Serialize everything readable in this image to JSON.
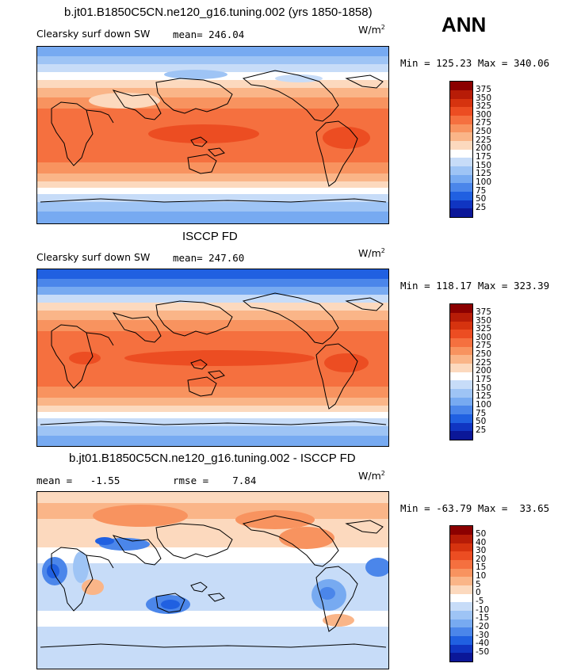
{
  "header": {
    "season": "ANN"
  },
  "chart_data": [
    {
      "type": "heatmap",
      "title": "b.jt01.B1850C5CN.ne120_g16.tuning.002 (yrs 1850-1858)",
      "variable": "Clearsky surf down SW",
      "units_base": "W/m",
      "units_exp": "2",
      "stat_text": "mean= 246.04",
      "minmax_text": "Min = 125.23 Max = 340.06",
      "stats": {
        "mean": 246.04,
        "min": 125.23,
        "max": 340.06
      },
      "colorbar": {
        "levels": [
          "375",
          "350",
          "325",
          "300",
          "275",
          "250",
          "225",
          "200",
          "175",
          "150",
          "125",
          "100",
          "75",
          "50",
          "25"
        ],
        "colors": [
          "#8b0000",
          "#b71c07",
          "#d6330f",
          "#ec4d22",
          "#f5703f",
          "#f8935f",
          "#fab588",
          "#fcd9be",
          "#ffffff",
          "#c7dcf8",
          "#9ec4f5",
          "#77aaf1",
          "#4b86ea",
          "#2060e1",
          "#1035c2",
          "#0b1798"
        ]
      }
    },
    {
      "type": "heatmap",
      "title": "ISCCP FD",
      "variable": "Clearsky surf down SW",
      "units_base": "W/m",
      "units_exp": "2",
      "stat_text": "mean= 247.60",
      "minmax_text": "Min = 118.17 Max = 323.39",
      "stats": {
        "mean": 247.6,
        "min": 118.17,
        "max": 323.39
      },
      "colorbar": {
        "levels": [
          "375",
          "350",
          "325",
          "300",
          "275",
          "250",
          "225",
          "200",
          "175",
          "150",
          "125",
          "100",
          "75",
          "50",
          "25"
        ],
        "colors": [
          "#8b0000",
          "#b71c07",
          "#d6330f",
          "#ec4d22",
          "#f5703f",
          "#f8935f",
          "#fab588",
          "#fcd9be",
          "#ffffff",
          "#c7dcf8",
          "#9ec4f5",
          "#77aaf1",
          "#4b86ea",
          "#2060e1",
          "#1035c2",
          "#0b1798"
        ]
      }
    },
    {
      "type": "heatmap",
      "title": "b.jt01.B1850C5CN.ne120_g16.tuning.002 - ISCCP FD",
      "units_base": "W/m",
      "units_exp": "2",
      "mean_text": "mean =   -1.55",
      "rmse_text": "rmse =    7.84",
      "minmax_text": "Min = -63.79 Max =  33.65",
      "stats": {
        "mean": -1.55,
        "rmse": 7.84,
        "min": -63.79,
        "max": 33.65
      },
      "colorbar": {
        "levels": [
          "50",
          "40",
          "30",
          "20",
          "15",
          "10",
          "5",
          "0",
          "-5",
          "-10",
          "-15",
          "-20",
          "-30",
          "-40",
          "-50"
        ],
        "colors": [
          "#8b0000",
          "#b71c07",
          "#d6330f",
          "#ec4d22",
          "#f5703f",
          "#f8935f",
          "#fab588",
          "#fcd9be",
          "#ffffff",
          "#c7dcf8",
          "#9ec4f5",
          "#77aaf1",
          "#4b86ea",
          "#2060e1",
          "#1035c2",
          "#0b1798"
        ]
      }
    }
  ]
}
